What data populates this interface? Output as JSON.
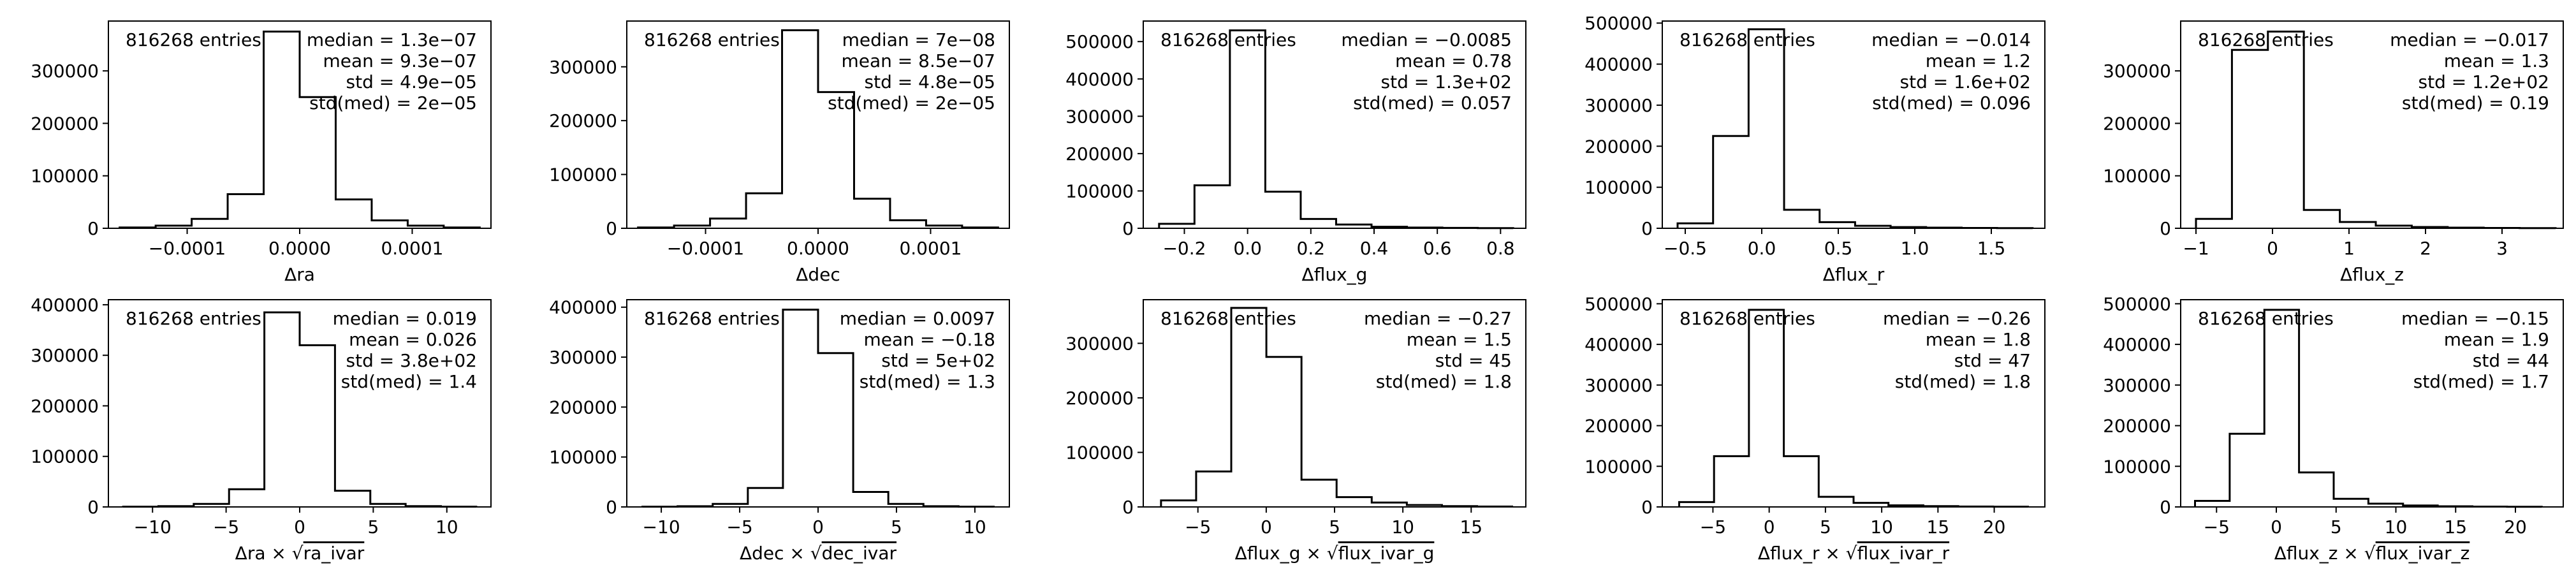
{
  "chart_data": [
    {
      "type": "bar",
      "xlabel": "Δra",
      "entries_label": "816268 entries",
      "stats": [
        "median = 1.3e−07",
        "mean = 9.3e−07",
        "std = 4.9e−05",
        "std(med) = 2e−05"
      ],
      "xlim": [
        -0.00017,
        0.00017
      ],
      "ylim": [
        0,
        395000
      ],
      "xticks": [
        -0.0001,
        0.0,
        0.0001
      ],
      "xtick_labels": [
        "−0.0001",
        "0.0000",
        "0.0001"
      ],
      "yticks": [
        0,
        100000,
        200000,
        300000
      ],
      "ytick_labels": [
        "0",
        "100000",
        "200000",
        "300000"
      ],
      "bin_edges": [
        -0.00016,
        -0.000128,
        -9.6e-05,
        -6.4e-05,
        -3.2e-05,
        0.0,
        3.2e-05,
        6.4e-05,
        9.6e-05,
        0.000128,
        0.00016
      ],
      "values": [
        1500,
        5000,
        18000,
        65000,
        375000,
        250000,
        55000,
        15000,
        5000,
        1500
      ]
    },
    {
      "type": "bar",
      "xlabel": "Δdec",
      "entries_label": "816268 entries",
      "stats": [
        "median = 7e−08",
        "mean = 8.5e−07",
        "std = 4.8e−05",
        "std(med) = 2e−05"
      ],
      "xlim": [
        -0.00017,
        0.00017
      ],
      "ylim": [
        0,
        385000
      ],
      "xticks": [
        -0.0001,
        0.0,
        0.0001
      ],
      "xtick_labels": [
        "−0.0001",
        "0.0000",
        "0.0001"
      ],
      "yticks": [
        0,
        100000,
        200000,
        300000
      ],
      "ytick_labels": [
        "0",
        "100000",
        "200000",
        "300000"
      ],
      "bin_edges": [
        -0.00016,
        -0.000128,
        -9.6e-05,
        -6.4e-05,
        -3.2e-05,
        0.0,
        3.2e-05,
        6.4e-05,
        9.6e-05,
        0.000128,
        0.00016
      ],
      "values": [
        1500,
        5000,
        18000,
        65000,
        368000,
        253000,
        55000,
        15000,
        5000,
        1500
      ]
    },
    {
      "type": "bar",
      "xlabel": "Δflux_g",
      "entries_label": "816268 entries",
      "stats": [
        "median = −0.0085",
        "mean = 0.78",
        "std = 1.3e+02",
        "std(med) = 0.057"
      ],
      "xlim": [
        -0.33,
        0.88
      ],
      "ylim": [
        0,
        555000
      ],
      "xticks": [
        -0.2,
        0.0,
        0.2,
        0.4,
        0.6,
        0.8
      ],
      "xtick_labels": [
        "−0.2",
        "0.0",
        "0.2",
        "0.4",
        "0.6",
        "0.8"
      ],
      "yticks": [
        0,
        100000,
        200000,
        300000,
        400000,
        500000
      ],
      "ytick_labels": [
        "0",
        "100000",
        "200000",
        "300000",
        "400000",
        "500000"
      ],
      "bin_edges": [
        -0.28,
        -0.168,
        -0.056,
        0.056,
        0.168,
        0.28,
        0.392,
        0.504,
        0.616,
        0.728,
        0.84
      ],
      "values": [
        12000,
        115000,
        530000,
        98000,
        25000,
        10000,
        4000,
        2000,
        1000,
        500
      ]
    },
    {
      "type": "bar",
      "xlabel": "Δflux_r",
      "entries_label": "816268 entries",
      "stats": [
        "median = −0.014",
        "mean = 1.2",
        "std = 1.6e+02",
        "std(med) = 0.096"
      ],
      "xlim": [
        -0.65,
        1.85
      ],
      "ylim": [
        0,
        505000
      ],
      "xticks": [
        -0.5,
        0.0,
        0.5,
        1.0,
        1.5
      ],
      "xtick_labels": [
        "−0.5",
        "0.0",
        "0.5",
        "1.0",
        "1.5"
      ],
      "yticks": [
        0,
        100000,
        200000,
        300000,
        400000,
        500000
      ],
      "ytick_labels": [
        "0",
        "100000",
        "200000",
        "300000",
        "400000",
        "500000"
      ],
      "bin_edges": [
        -0.55,
        -0.318,
        -0.086,
        0.146,
        0.378,
        0.61,
        0.842,
        1.074,
        1.306,
        1.538,
        1.77
      ],
      "values": [
        12000,
        225000,
        485000,
        45000,
        15000,
        6000,
        3000,
        1500,
        800,
        400
      ]
    },
    {
      "type": "bar",
      "xlabel": "Δflux_z",
      "entries_label": "816268 entries",
      "stats": [
        "median = −0.017",
        "mean = 1.3",
        "std = 1.2e+02",
        "std(med) = 0.19"
      ],
      "xlim": [
        -1.2,
        3.8
      ],
      "ylim": [
        0,
        395000
      ],
      "xticks": [
        -1,
        0,
        1,
        2,
        3
      ],
      "xtick_labels": [
        "−1",
        "0",
        "1",
        "2",
        "3"
      ],
      "yticks": [
        0,
        100000,
        200000,
        300000
      ],
      "ytick_labels": [
        "0",
        "100000",
        "200000",
        "300000"
      ],
      "bin_edges": [
        -1.0,
        -0.53,
        -0.06,
        0.41,
        0.88,
        1.35,
        1.82,
        2.29,
        2.76,
        3.23,
        3.7
      ],
      "values": [
        18000,
        340000,
        375000,
        35000,
        12000,
        5000,
        2500,
        1200,
        600,
        300
      ]
    },
    {
      "type": "bar",
      "xlabel": "Δra × √ra_ivar",
      "xlabel_parts": [
        "Δra × ",
        "ra_ivar"
      ],
      "entries_label": "816268 entries",
      "stats": [
        "median = 0.019",
        "mean = 0.026",
        "std = 3.8e+02",
        "std(med) = 1.4"
      ],
      "xlim": [
        -13,
        13
      ],
      "ylim": [
        0,
        410000
      ],
      "xticks": [
        -10,
        -5,
        0,
        5,
        10
      ],
      "xtick_labels": [
        "−10",
        "−5",
        "0",
        "5",
        "10"
      ],
      "yticks": [
        0,
        100000,
        200000,
        300000,
        400000
      ],
      "ytick_labels": [
        "0",
        "100000",
        "200000",
        "300000",
        "400000"
      ],
      "bin_edges": [
        -12,
        -9.6,
        -7.2,
        -4.8,
        -2.4,
        0,
        2.4,
        4.8,
        7.2,
        9.6,
        12
      ],
      "values": [
        500,
        1500,
        6000,
        35000,
        385000,
        320000,
        32000,
        6000,
        1500,
        500
      ]
    },
    {
      "type": "bar",
      "xlabel": "Δdec × √dec_ivar",
      "xlabel_parts": [
        "Δdec × ",
        "dec_ivar"
      ],
      "entries_label": "816268 entries",
      "stats": [
        "median = 0.0097",
        "mean = −0.18",
        "std = 5e+02",
        "std(med) = 1.3"
      ],
      "xlim": [
        -12.2,
        12.2
      ],
      "ylim": [
        0,
        415000
      ],
      "xticks": [
        -10,
        -5,
        0,
        5,
        10
      ],
      "xtick_labels": [
        "−10",
        "−5",
        "0",
        "5",
        "10"
      ],
      "yticks": [
        0,
        100000,
        200000,
        300000,
        400000
      ],
      "ytick_labels": [
        "0",
        "100000",
        "200000",
        "300000",
        "400000"
      ],
      "bin_edges": [
        -11.2,
        -8.96,
        -6.72,
        -4.48,
        -2.24,
        0,
        2.24,
        4.48,
        6.72,
        8.96,
        11.2
      ],
      "values": [
        500,
        1500,
        6000,
        38000,
        395000,
        308000,
        30000,
        6000,
        1500,
        500
      ]
    },
    {
      "type": "bar",
      "xlabel": "Δflux_g × √flux_ivar_g",
      "xlabel_parts": [
        "Δflux_g × ",
        "flux_ivar_g"
      ],
      "entries_label": "816268 entries",
      "stats": [
        "median = −0.27",
        "mean = 1.5",
        "std = 45",
        "std(med) = 1.8"
      ],
      "xlim": [
        -9,
        19
      ],
      "ylim": [
        0,
        380000
      ],
      "xticks": [
        -5,
        0,
        5,
        10,
        15
      ],
      "xtick_labels": [
        "−5",
        "0",
        "5",
        "10",
        "15"
      ],
      "yticks": [
        0,
        100000,
        200000,
        300000
      ],
      "ytick_labels": [
        "0",
        "100000",
        "200000",
        "300000"
      ],
      "bin_edges": [
        -7.7,
        -5.13,
        -2.56,
        0.01,
        2.58,
        5.15,
        7.72,
        10.29,
        12.86,
        15.43,
        18.0
      ],
      "values": [
        12000,
        65000,
        365000,
        275000,
        50000,
        18000,
        8000,
        3500,
        1500,
        700
      ]
    },
    {
      "type": "bar",
      "xlabel": "Δflux_r × √flux_ivar_r",
      "xlabel_parts": [
        "Δflux_r × ",
        "flux_ivar_r"
      ],
      "entries_label": "816268 entries",
      "stats": [
        "median = −0.26",
        "mean = 1.8",
        "std = 47",
        "std(med) = 1.8"
      ],
      "xlim": [
        -9.5,
        24.5
      ],
      "ylim": [
        0,
        510000
      ],
      "xticks": [
        -5,
        0,
        5,
        10,
        15,
        20
      ],
      "xtick_labels": [
        "−5",
        "0",
        "5",
        "10",
        "15",
        "20"
      ],
      "yticks": [
        0,
        100000,
        200000,
        300000,
        400000,
        500000
      ],
      "ytick_labels": [
        "0",
        "100000",
        "200000",
        "300000",
        "400000",
        "500000"
      ],
      "bin_edges": [
        -8.0,
        -4.9,
        -1.8,
        1.3,
        4.4,
        7.5,
        10.6,
        13.7,
        16.8,
        19.9,
        23.0
      ],
      "values": [
        12000,
        125000,
        485000,
        125000,
        25000,
        10000,
        4000,
        2000,
        1000,
        500
      ]
    },
    {
      "type": "bar",
      "xlabel": "Δflux_z × √flux_ivar_z",
      "xlabel_parts": [
        "Δflux_z × ",
        "flux_ivar_z"
      ],
      "entries_label": "816268 entries",
      "stats": [
        "median = −0.15",
        "mean = 1.9",
        "std = 44",
        "std(med) = 1.7"
      ],
      "xlim": [
        -8,
        24
      ],
      "ylim": [
        0,
        510000
      ],
      "xticks": [
        -5,
        0,
        5,
        10,
        15,
        20
      ],
      "xtick_labels": [
        "−5",
        "0",
        "5",
        "10",
        "15",
        "20"
      ],
      "yticks": [
        0,
        100000,
        200000,
        300000,
        400000,
        500000
      ],
      "ytick_labels": [
        "0",
        "100000",
        "200000",
        "300000",
        "400000",
        "500000"
      ],
      "bin_edges": [
        -6.8,
        -3.9,
        -1.0,
        1.9,
        4.8,
        7.7,
        10.6,
        13.5,
        16.4,
        19.3,
        22.2
      ],
      "values": [
        15000,
        180000,
        485000,
        85000,
        20000,
        8000,
        3500,
        1500,
        800,
        400
      ]
    }
  ]
}
